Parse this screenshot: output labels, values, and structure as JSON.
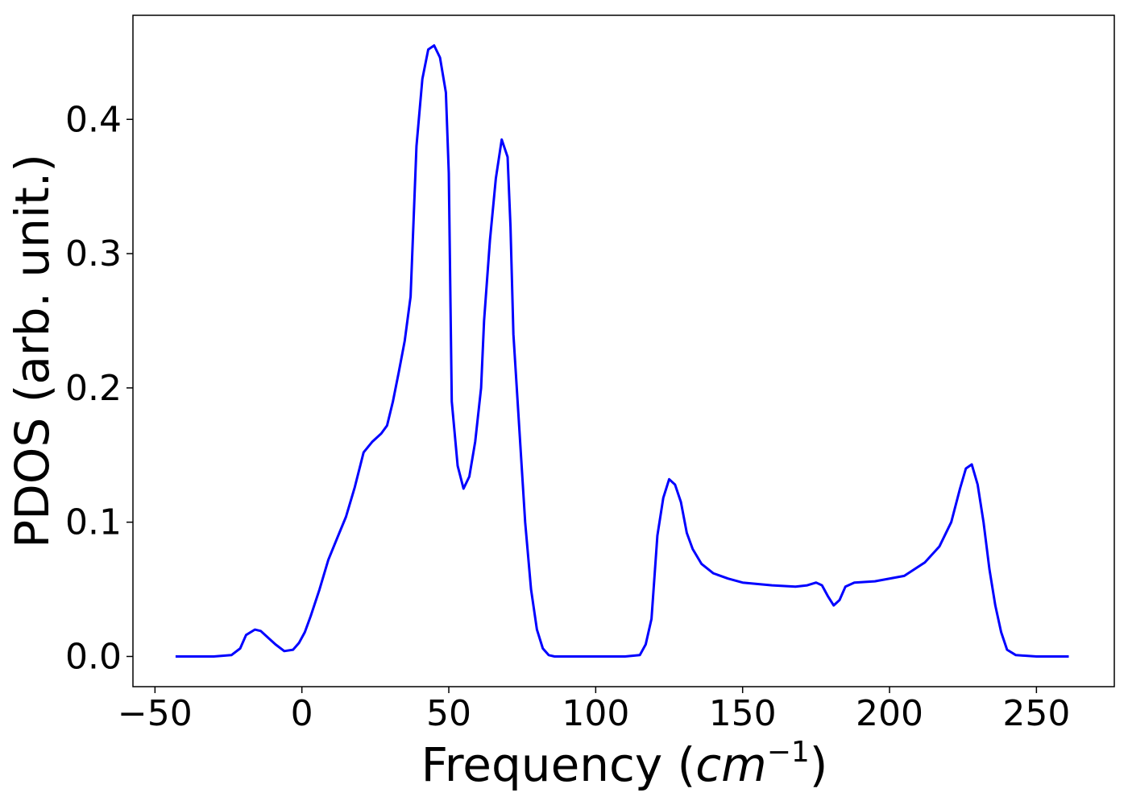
{
  "chart_data": {
    "type": "line",
    "xlabel": "Frequency (",
    "xlabel_unit": "cm",
    "xlabel_exponent": "−1",
    "xlabel_close": ")",
    "ylabel": "PDOS (arb. unit.)",
    "xlim": [
      -57.5,
      276.5
    ],
    "ylim": [
      -0.0225,
      0.4775
    ],
    "xticks": [
      -50,
      0,
      50,
      100,
      150,
      200,
      250
    ],
    "xtick_labels": [
      "−50",
      "0",
      "50",
      "100",
      "150",
      "200",
      "250"
    ],
    "yticks": [
      0.0,
      0.1,
      0.2,
      0.3,
      0.4
    ],
    "ytick_labels": [
      "0.0",
      "0.1",
      "0.2",
      "0.3",
      "0.4"
    ],
    "grid": false,
    "line_color": "#0000ff",
    "series": [
      {
        "x": [
          -43,
          -30,
          -24,
          -21,
          -19,
          -16,
          -14,
          -12,
          -9,
          -6,
          -3,
          -1,
          1,
          3,
          6,
          9,
          12,
          15,
          18,
          21,
          24,
          27,
          29,
          31,
          33,
          35,
          37,
          39,
          41,
          43,
          45,
          47,
          49,
          50,
          51,
          53,
          55,
          57,
          59,
          61,
          62,
          64,
          66,
          68,
          70,
          71,
          72,
          74,
          76,
          78,
          80,
          82,
          84,
          86,
          90,
          100,
          110,
          115,
          117,
          119,
          121,
          123,
          125,
          127,
          129,
          131,
          133,
          136,
          140,
          145,
          150,
          160,
          168,
          172,
          175,
          177,
          179,
          181,
          183,
          185,
          188,
          195,
          205,
          212,
          217,
          221,
          224,
          226,
          228,
          230,
          232,
          234,
          236,
          238,
          240,
          243,
          250,
          261
        ],
        "y": [
          0.0,
          0.0,
          0.001,
          0.006,
          0.016,
          0.02,
          0.019,
          0.015,
          0.009,
          0.004,
          0.005,
          0.01,
          0.018,
          0.03,
          0.05,
          0.072,
          0.088,
          0.104,
          0.126,
          0.152,
          0.16,
          0.166,
          0.172,
          0.19,
          0.212,
          0.235,
          0.268,
          0.38,
          0.43,
          0.452,
          0.455,
          0.446,
          0.42,
          0.36,
          0.19,
          0.142,
          0.125,
          0.134,
          0.16,
          0.2,
          0.25,
          0.31,
          0.356,
          0.385,
          0.372,
          0.32,
          0.24,
          0.17,
          0.1,
          0.05,
          0.02,
          0.006,
          0.001,
          0.0,
          0.0,
          0.0,
          0.0,
          0.001,
          0.009,
          0.028,
          0.09,
          0.118,
          0.132,
          0.128,
          0.115,
          0.092,
          0.08,
          0.069,
          0.062,
          0.058,
          0.055,
          0.053,
          0.052,
          0.053,
          0.055,
          0.053,
          0.045,
          0.038,
          0.042,
          0.052,
          0.055,
          0.056,
          0.06,
          0.07,
          0.082,
          0.1,
          0.125,
          0.14,
          0.143,
          0.128,
          0.1,
          0.065,
          0.038,
          0.018,
          0.005,
          0.001,
          0.0,
          0.0
        ]
      }
    ]
  }
}
